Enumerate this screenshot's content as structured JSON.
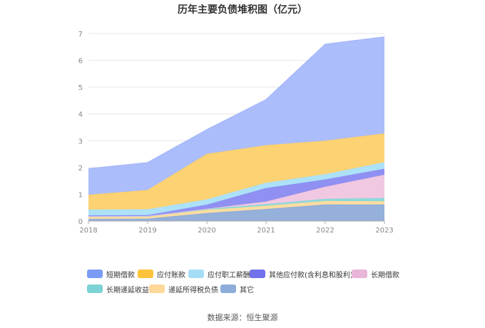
{
  "chart_data": {
    "type": "area",
    "stacked": true,
    "title": "历年主要负债堆积图（亿元）",
    "x": [
      "2018",
      "2019",
      "2020",
      "2021",
      "2022",
      "2023"
    ],
    "yticks": [
      "0",
      "1",
      "2",
      "3",
      "4",
      "5",
      "6",
      "7"
    ],
    "ylim": [
      0,
      7
    ],
    "grid": true,
    "legend_position": "bottom",
    "series": [
      {
        "name": "其它",
        "color": "#8eacd9",
        "values": [
          0.08,
          0.09,
          0.3,
          0.45,
          0.62,
          0.62
        ]
      },
      {
        "name": "递延所得税负债",
        "color": "#fddb9c",
        "values": [
          0.07,
          0.07,
          0.12,
          0.12,
          0.13,
          0.12
        ]
      },
      {
        "name": "长期递延收益",
        "color": "#88d8d8",
        "values": [
          0.03,
          0.03,
          0.04,
          0.06,
          0.08,
          0.12
        ]
      },
      {
        "name": "长期借款",
        "color": "#f0c5e0",
        "values": [
          0.0,
          0.0,
          0.0,
          0.1,
          0.45,
          0.87
        ]
      },
      {
        "name": "其他应付款(含利息和股利)",
        "color": "#8a8af2",
        "values": [
          0.03,
          0.03,
          0.15,
          0.5,
          0.27,
          0.22
        ]
      },
      {
        "name": "应付职工薪酬",
        "color": "#a9dff8",
        "values": [
          0.22,
          0.22,
          0.2,
          0.2,
          0.2,
          0.25
        ]
      },
      {
        "name": "应付账款",
        "color": "#fcd06a",
        "values": [
          0.55,
          0.72,
          1.7,
          1.4,
          1.25,
          1.07
        ]
      },
      {
        "name": "短期借款",
        "color": "#a7b9fb",
        "values": [
          0.97,
          1.02,
          0.9,
          1.7,
          3.6,
          3.6
        ]
      }
    ]
  },
  "legend": [
    {
      "label": "短期借款",
      "color": "#7b9cf6"
    },
    {
      "label": "应付账款",
      "color": "#fbc23a"
    },
    {
      "label": "应付职工薪酬",
      "color": "#a6ddf6"
    },
    {
      "label": "其他应付款(含利息和股利)",
      "color": "#7171ec"
    },
    {
      "label": "长期借款",
      "color": "#e9b5d8"
    },
    {
      "label": "长期递延收益",
      "color": "#7dd3d3"
    },
    {
      "label": "递延所得税负债",
      "color": "#fdd898"
    },
    {
      "label": "其它",
      "color": "#8eacd9"
    }
  ],
  "source": "数据来源：恒生聚源"
}
